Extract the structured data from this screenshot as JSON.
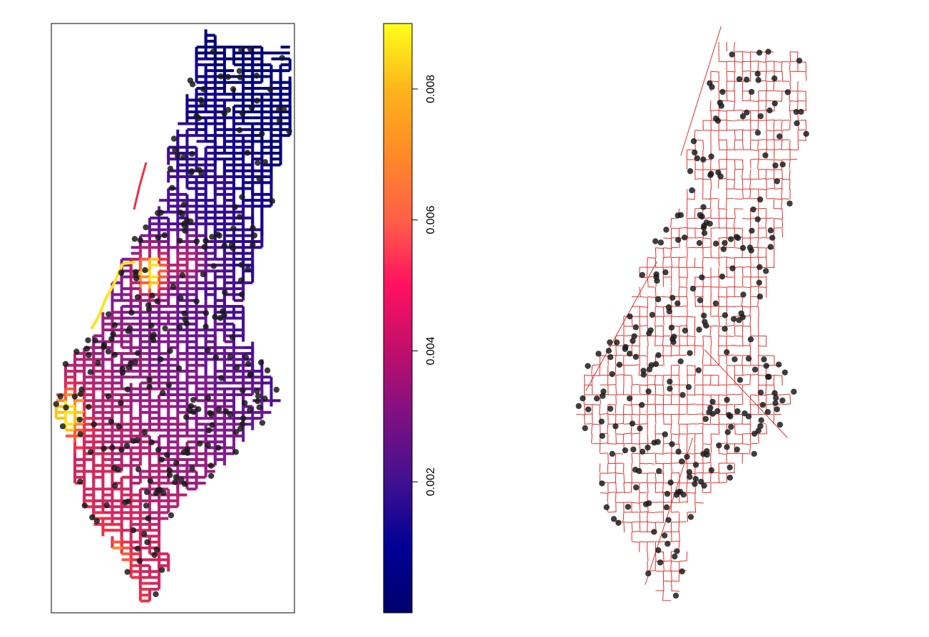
{
  "left_panel": {
    "network_colors": [
      "#00007a",
      "#13008d",
      "#2e0a94",
      "#4a0e96",
      "#661495",
      "#82198f",
      "#9b1d82",
      "#b62274",
      "#d3265f",
      "#ef2f48",
      "#ff5a3a",
      "#ff8c28",
      "#ffc21b",
      "#fde51f"
    ],
    "point_color": "#1a1a1a",
    "frame_color": "#000000"
  },
  "colorbar": {
    "gradient_stops": [
      {
        "value": 0.0,
        "color": "#00006a"
      },
      {
        "value": 0.001,
        "color": "#000096"
      },
      {
        "value": 0.002,
        "color": "#40108f"
      },
      {
        "value": 0.003,
        "color": "#7d1082"
      },
      {
        "value": 0.004,
        "color": "#c00f6b"
      },
      {
        "value": 0.005,
        "color": "#ff1060"
      },
      {
        "value": 0.006,
        "color": "#ff6048"
      },
      {
        "value": 0.007,
        "color": "#ff8a28"
      },
      {
        "value": 0.008,
        "color": "#fbb51b"
      },
      {
        "value": 0.009,
        "color": "#ffff1a"
      }
    ],
    "ticks": [
      {
        "value": 0.002,
        "label": "0.002"
      },
      {
        "value": 0.004,
        "label": "0.004"
      },
      {
        "value": 0.006,
        "label": "0.006"
      },
      {
        "value": 0.008,
        "label": "0.008"
      }
    ],
    "range": [
      0.0,
      0.009
    ]
  },
  "right_panel": {
    "network_color": "#e0312f",
    "point_color": "#1c1c1c"
  }
}
